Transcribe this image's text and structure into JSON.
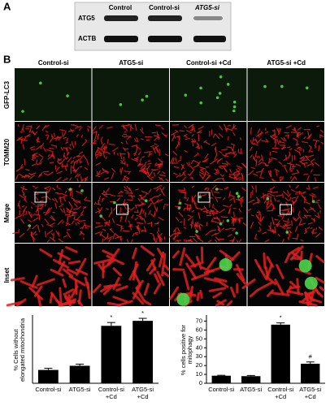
{
  "panel_a": {
    "label": "A",
    "columns": [
      "Control",
      "Control-si",
      "ATG5-si"
    ],
    "rows": [
      "ATG5",
      "ACTB"
    ]
  },
  "panel_b": {
    "label": "B",
    "columns": [
      "Control-si",
      "ATG5-si",
      "Control-si +Cd",
      "ATG5-si +Cd"
    ],
    "rows": [
      "GFP-LC3",
      "TOMM20",
      "Merge",
      "Inset"
    ]
  },
  "chart_data": [
    {
      "type": "bar",
      "ylabel": [
        "% Cells without",
        "elongated mitochondria"
      ],
      "categories": [
        [
          "Control-si"
        ],
        [
          "ATG5-si"
        ],
        [
          "Control-si",
          "+Cd"
        ],
        [
          "ATG5-si",
          "+Cd"
        ]
      ],
      "values": [
        16,
        21,
        69,
        75
      ],
      "errors": [
        2,
        2,
        4,
        3
      ],
      "bar_labels": [
        null,
        null,
        "*",
        "*"
      ],
      "color": "#000000",
      "ylim": [
        0,
        80
      ]
    },
    {
      "type": "bar",
      "ylabel": [
        "% cells positive for",
        "mitophagy"
      ],
      "categories": [
        [
          "Control-si"
        ],
        [
          "ATG5-si"
        ],
        [
          "Control-si",
          "+Cd"
        ],
        [
          "ATG5-si",
          "+Cd"
        ]
      ],
      "values": [
        8.5,
        8,
        66,
        22
      ],
      "errors": [
        0.5,
        0.8,
        2,
        2
      ],
      "bar_labels": [
        null,
        null,
        "*",
        "#"
      ],
      "color": "#000000",
      "ylim": [
        0,
        75
      ],
      "yticks": [
        0,
        10,
        20,
        30,
        40,
        50,
        60,
        70
      ]
    }
  ]
}
